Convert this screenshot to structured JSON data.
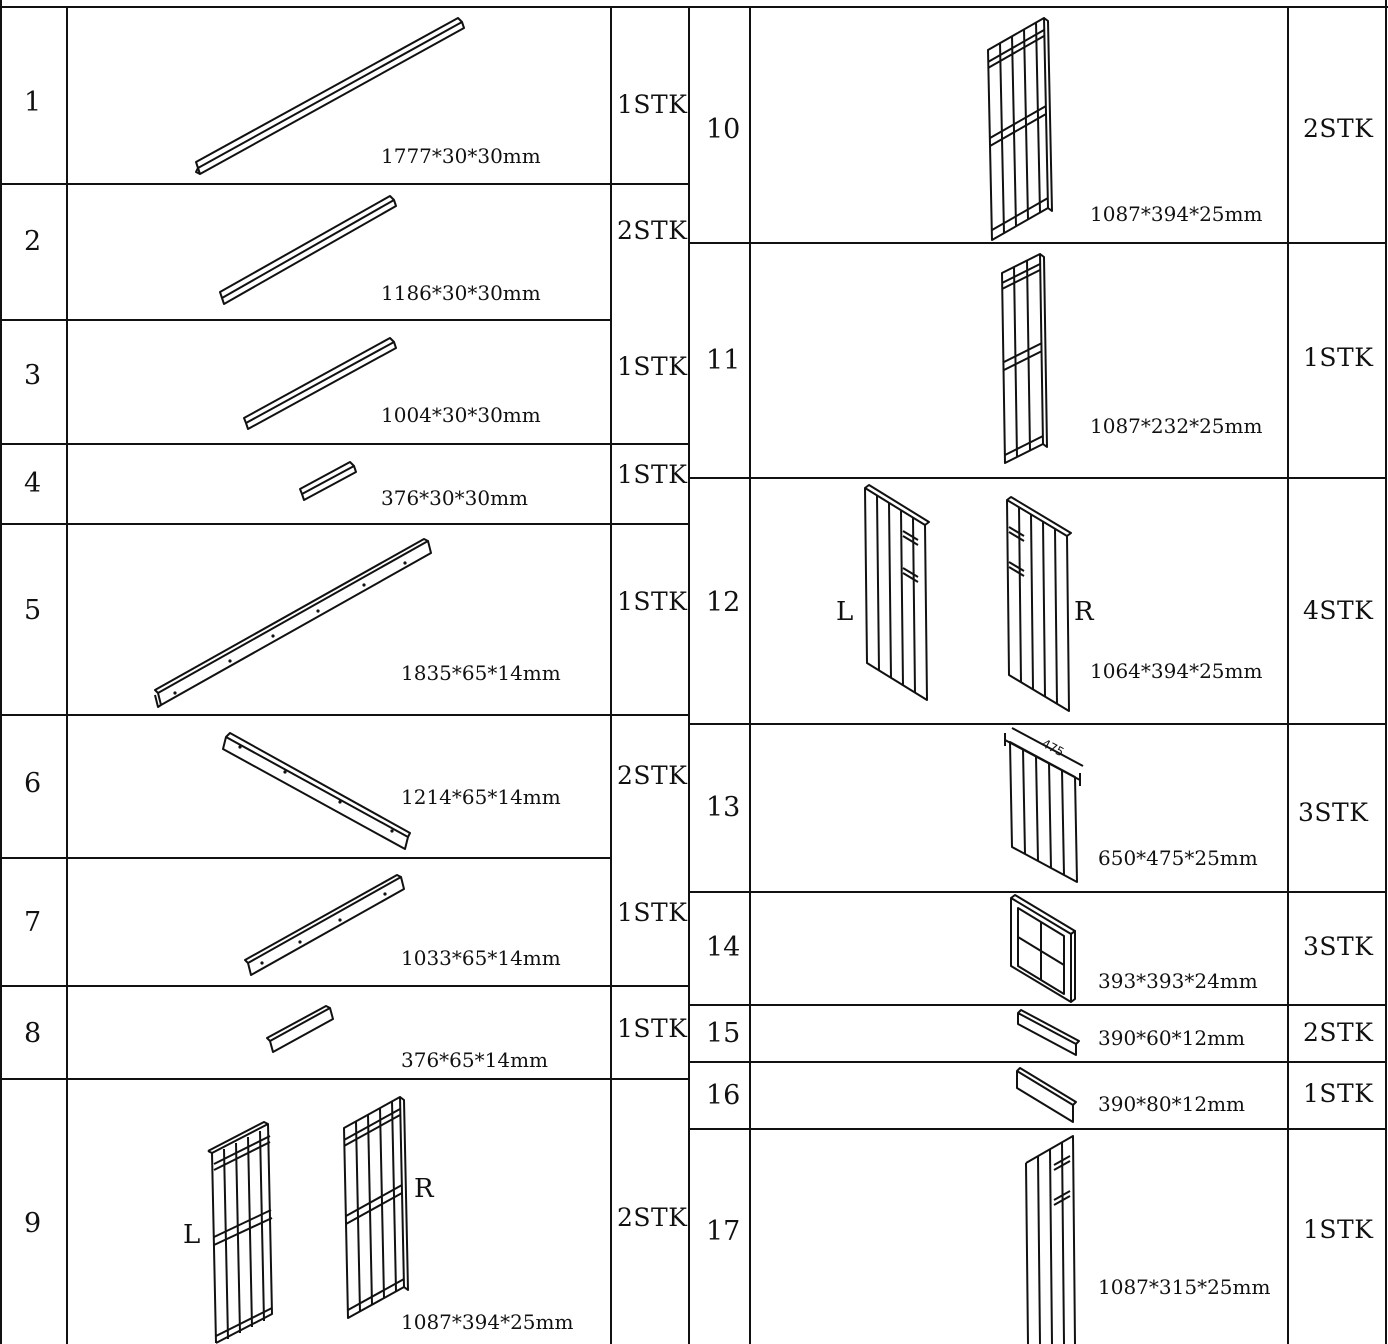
{
  "colors": {
    "line": "#111111",
    "background": "#ffffff"
  },
  "left_rows": [
    {
      "num": "1",
      "dim": "1777*30*30mm",
      "qty": "1STK"
    },
    {
      "num": "2",
      "dim": "1186*30*30mm",
      "qty": "2STK"
    },
    {
      "num": "3",
      "dim": "1004*30*30mm",
      "qty": "1STK"
    },
    {
      "num": "4",
      "dim": "376*30*30mm",
      "qty": "1STK"
    },
    {
      "num": "5",
      "dim": "1835*65*14mm",
      "qty": "1STK"
    },
    {
      "num": "6",
      "dim": "1214*65*14mm",
      "qty": "2STK"
    },
    {
      "num": "7",
      "dim": "1033*65*14mm",
      "qty": "1STK"
    },
    {
      "num": "8",
      "dim": "376*65*14mm",
      "qty": "1STK"
    },
    {
      "num": "9",
      "dim": "1087*394*25mm",
      "qty": "2STK",
      "left_tag": "L",
      "right_tag": "R"
    }
  ],
  "right_rows": [
    {
      "num": "10",
      "dim": "1087*394*25mm",
      "qty": "2STK"
    },
    {
      "num": "11",
      "dim": "1087*232*25mm",
      "qty": "1STK"
    },
    {
      "num": "12",
      "dim": "1064*394*25mm",
      "qty": "4STK",
      "left_tag": "L",
      "right_tag": "R"
    },
    {
      "num": "13",
      "dim": "650*475*25mm",
      "qty": "3STK",
      "drawing_label": "475"
    },
    {
      "num": "14",
      "dim": "393*393*24mm",
      "qty": "3STK"
    },
    {
      "num": "15",
      "dim": "390*60*12mm",
      "qty": "2STK"
    },
    {
      "num": "16",
      "dim": "390*80*12mm",
      "qty": "1STK"
    },
    {
      "num": "17",
      "dim": "1087*315*25mm",
      "qty": "1STK"
    }
  ]
}
